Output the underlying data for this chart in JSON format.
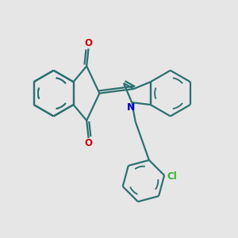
{
  "bg_color": "#e6e6e6",
  "bond_color": "#2d7070",
  "O_color": "#cc0000",
  "N_color": "#0000cc",
  "Cl_color": "#2db52d",
  "line_width": 1.6,
  "figsize": [
    3.0,
    3.0
  ],
  "dpi": 100,
  "xlim": [
    0,
    10
  ],
  "ylim": [
    0,
    10
  ]
}
